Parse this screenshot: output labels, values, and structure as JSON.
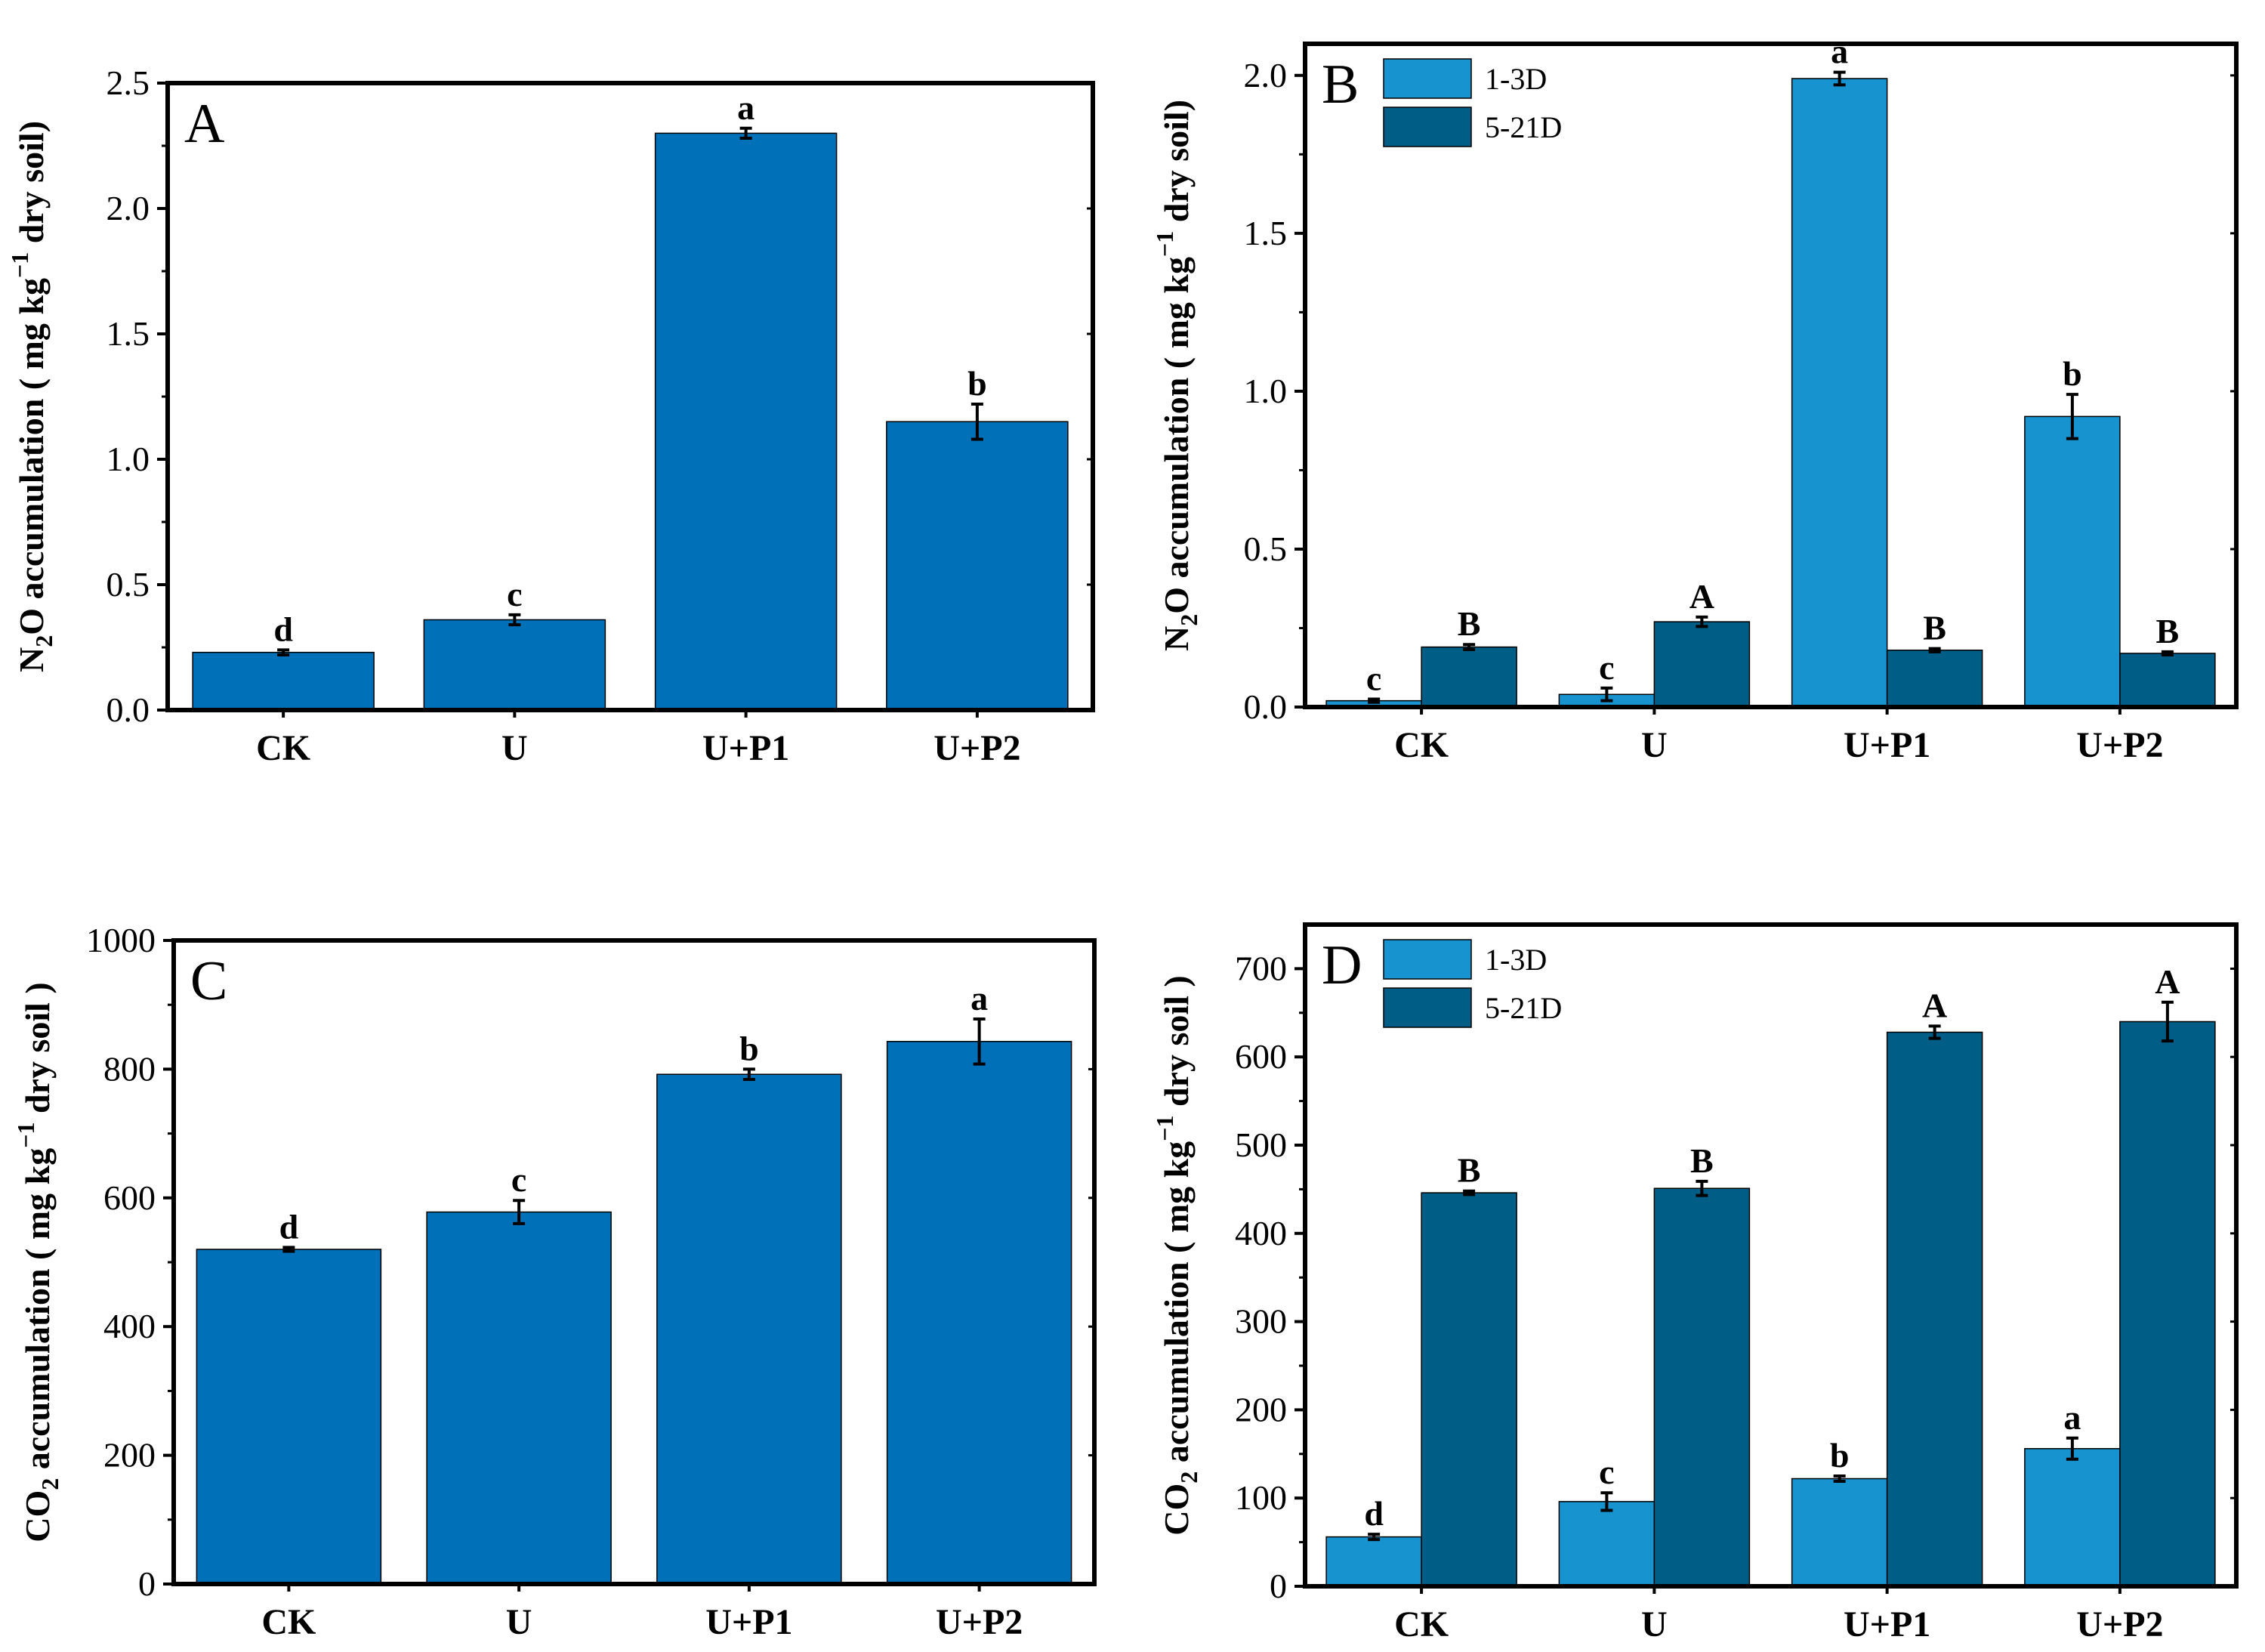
{
  "colors": {
    "single": "#0071b8",
    "series_1_3D": "#1794cf",
    "series_5_21D": "#005d85",
    "frame": "#000000"
  },
  "chart_data": [
    {
      "panel": "A",
      "type": "bar",
      "categories": [
        "CK",
        "U",
        "U+P1",
        "U+P2"
      ],
      "series": [
        {
          "values": [
            0.23,
            0.36,
            2.3,
            1.15
          ],
          "errors": [
            0.01,
            0.02,
            0.02,
            0.07
          ],
          "letters": [
            "d",
            "c",
            "a",
            "b"
          ]
        }
      ],
      "ylabel": {
        "pre": "N",
        "sub": "2",
        "mid": "O accumulation ( mg kg",
        "sup": "−1",
        "post": " dry soil)"
      },
      "ylim": [
        0,
        2.5
      ],
      "yticks": [
        "0.0",
        "0.5",
        "1.0",
        "1.5",
        "2.0",
        "2.5"
      ],
      "legend": "none"
    },
    {
      "panel": "B",
      "type": "bar",
      "categories": [
        "CK",
        "U",
        "U+P1",
        "U+P2"
      ],
      "series": [
        {
          "name": "1-3D",
          "values": [
            0.02,
            0.04,
            1.99,
            0.92
          ],
          "errors": [
            0.005,
            0.02,
            0.02,
            0.07
          ],
          "letters": [
            "c",
            "c",
            "a",
            "b"
          ]
        },
        {
          "name": "5-21D",
          "values": [
            0.19,
            0.27,
            0.18,
            0.17
          ],
          "errors": [
            0.008,
            0.015,
            0.005,
            0.005
          ],
          "letters": [
            "B",
            "A",
            "B",
            "B"
          ]
        }
      ],
      "ylabel": {
        "pre": "N",
        "sub": "2",
        "mid": "O accumulation ( mg kg",
        "sup": "−1",
        "post": " dry soil)"
      },
      "ylim": [
        0,
        2.1
      ],
      "yticks": [
        "0.0",
        "0.5",
        "1.0",
        "1.5",
        "2.0"
      ],
      "legend": "top-left"
    },
    {
      "panel": "C",
      "type": "bar",
      "categories": [
        "CK",
        "U",
        "U+P1",
        "U+P2"
      ],
      "series": [
        {
          "values": [
            520,
            578,
            792,
            843
          ],
          "errors": [
            3,
            18,
            8,
            35
          ],
          "letters": [
            "d",
            "c",
            "b",
            "a"
          ]
        }
      ],
      "ylabel": {
        "pre": "CO",
        "sub": "2",
        "mid": " accumulation ( mg kg",
        "sup": "−1",
        "post": " dry soil )"
      },
      "ylim": [
        0,
        1000
      ],
      "yticks": [
        "0",
        "200",
        "400",
        "600",
        "800",
        "1000"
      ],
      "legend": "none"
    },
    {
      "panel": "D",
      "type": "bar",
      "categories": [
        "CK",
        "U",
        "U+P1",
        "U+P2"
      ],
      "series": [
        {
          "name": "1-3D",
          "values": [
            56,
            96,
            122,
            156
          ],
          "errors": [
            3,
            10,
            3,
            12
          ],
          "letters": [
            "d",
            "c",
            "b",
            "a"
          ]
        },
        {
          "name": "5-21D",
          "values": [
            446,
            451,
            628,
            640
          ],
          "errors": [
            2,
            8,
            7,
            22
          ],
          "letters": [
            "B",
            "B",
            "A",
            "A"
          ]
        }
      ],
      "ylabel": {
        "pre": "CO",
        "sub": "2",
        "mid": " accumulation ( mg kg",
        "sup": "−1",
        "post": " dry soil )"
      },
      "ylim": [
        0,
        750
      ],
      "yticks": [
        "0",
        "100",
        "200",
        "300",
        "400",
        "500",
        "600",
        "700"
      ],
      "legend": "top-left"
    }
  ]
}
